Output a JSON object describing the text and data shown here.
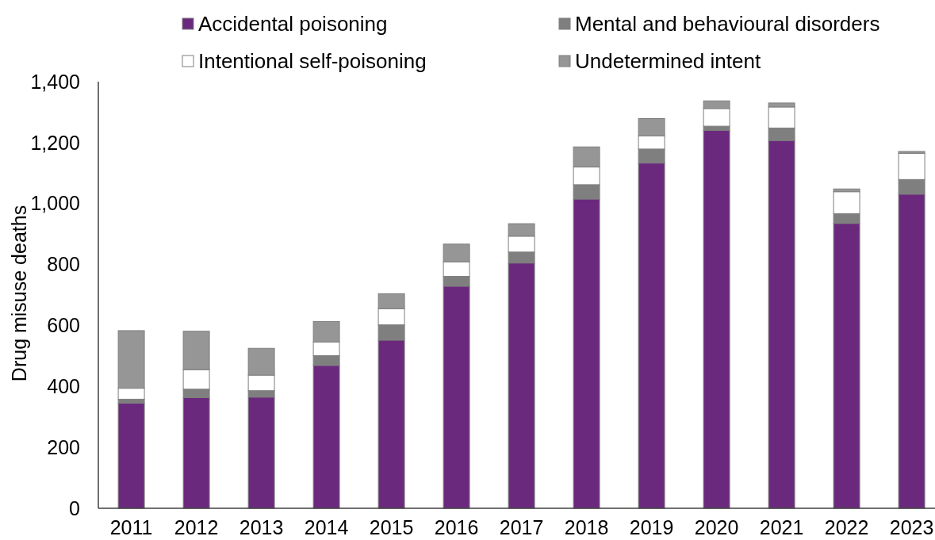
{
  "chart_data": {
    "type": "bar",
    "stacked": true,
    "ylabel": "Drug misuse deaths",
    "categories": [
      "2011",
      "2012",
      "2013",
      "2014",
      "2015",
      "2016",
      "2017",
      "2018",
      "2019",
      "2020",
      "2021",
      "2022",
      "2023"
    ],
    "series": [
      {
        "name": "Accidental poisoning",
        "color": "#6b297d",
        "values": [
          345,
          363,
          365,
          469,
          552,
          729,
          805,
          1015,
          1133,
          1240,
          1207,
          935,
          1031
        ]
      },
      {
        "name": "Mental and behavioural disorders",
        "color": "#7f7f7f",
        "values": [
          13,
          28,
          21,
          32,
          50,
          32,
          36,
          47,
          46,
          14,
          41,
          32,
          48
        ]
      },
      {
        "name": "Intentional self-poisoning",
        "color": "#ffffff",
        "values": [
          36,
          64,
          51,
          45,
          53,
          48,
          52,
          58,
          43,
          58,
          69,
          72,
          86
        ]
      },
      {
        "name": "Undetermined intent",
        "color": "#969696",
        "values": [
          189,
          126,
          88,
          67,
          49,
          58,
          41,
          66,
          57,
          25,
          13,
          9,
          6
        ]
      }
    ],
    "ylim": [
      0,
      1400
    ],
    "yticks": [
      0,
      200,
      400,
      600,
      800,
      {
        "value": 1000,
        "label": "1,000"
      },
      {
        "value": 1200,
        "label": "1,200"
      },
      {
        "value": 1400,
        "label": "1,400"
      }
    ],
    "grid": false,
    "legend": "top"
  }
}
